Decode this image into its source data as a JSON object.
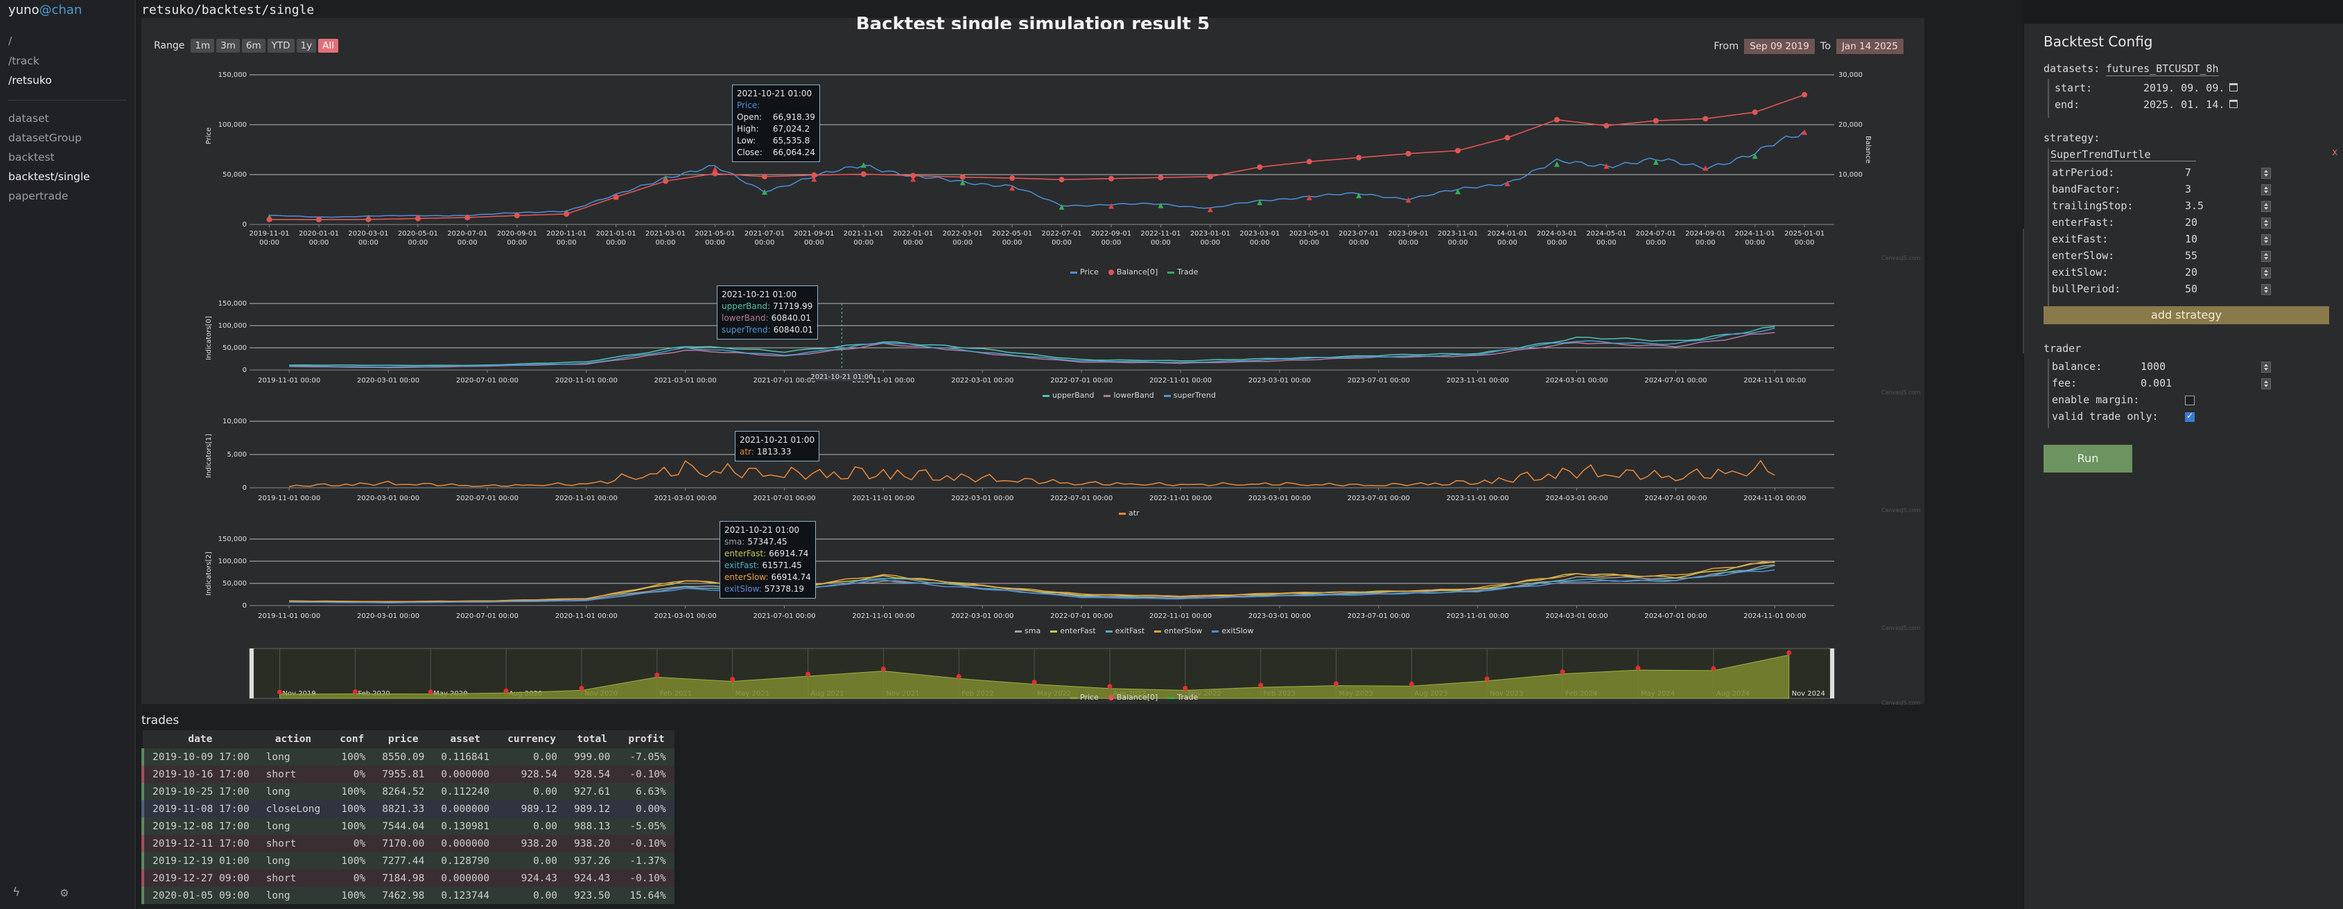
{
  "sidebar": {
    "user_name": "yuno",
    "user_host": "@chan",
    "paths": [
      "/",
      "/track",
      "/retsuko"
    ],
    "items": [
      "dataset",
      "datasetGroup",
      "backtest",
      "backtest/single",
      "papertrade"
    ]
  },
  "breadcrumb": "retsuko/backtest/single",
  "chart_panel": {
    "title": "Backtest single simulation result 5",
    "range_label": "Range",
    "range_buttons": [
      "1m",
      "3m",
      "6m",
      "YTD",
      "1y",
      "All"
    ],
    "range_selected": "All",
    "from_label": "From",
    "from_value": "Sep 09 2019",
    "to_label": "To",
    "to_value": "Jan 14 2025",
    "credit": "CanvasJS.com"
  },
  "chart_data": [
    {
      "type": "line",
      "title": "",
      "ylabel": "Price",
      "y2label": "Balance",
      "ylim": [
        0,
        150000
      ],
      "y2lim": [
        0,
        30000
      ],
      "yticks": [
        "0",
        "50,000",
        "100,000",
        "150,000"
      ],
      "y2ticks": [
        "10,000",
        "20,000",
        "30,000"
      ],
      "x": [
        "2019-11-01 00:00",
        "2020-01-01 00:00",
        "2020-03-01 00:00",
        "2020-05-01 00:00",
        "2020-07-01 00:00",
        "2020-09-01 00:00",
        "2020-11-01 00:00",
        "2021-01-01 00:00",
        "2021-03-01 00:00",
        "2021-05-01 00:00",
        "2021-07-01 00:00",
        "2021-09-01 00:00",
        "2021-11-01 00:00",
        "2022-01-01 00:00",
        "2022-03-01 00:00",
        "2022-05-01 00:00",
        "2022-07-01 00:00",
        "2022-09-01 00:00",
        "2022-11-01 00:00",
        "2023-01-01 00:00",
        "2023-03-01 00:00",
        "2023-05-01 00:00",
        "2023-07-01 00:00",
        "2023-09-01 00:00",
        "2023-11-01 00:00",
        "2024-01-01 00:00",
        "2024-03-01 00:00",
        "2024-05-01 00:00",
        "2024-07-01 00:00",
        "2024-09-01 00:00",
        "2024-11-01 00:00",
        "2025-01-01 00:00"
      ],
      "series": [
        {
          "name": "Price",
          "color": "#4a90d9",
          "values": [
            9100,
            7200,
            8500,
            8800,
            9200,
            11500,
            13800,
            29000,
            48000,
            57000,
            34000,
            47000,
            61000,
            47000,
            43500,
            38000,
            19000,
            20000,
            20500,
            16500,
            23500,
            28500,
            30500,
            26000,
            34500,
            42500,
            62000,
            60000,
            64000,
            58000,
            70000,
            94000
          ]
        },
        {
          "name": "Balance[0]",
          "color": "#e05555",
          "values": [
            1000,
            990,
            1010,
            1200,
            1400,
            1800,
            2100,
            5500,
            8700,
            10200,
            9600,
            9900,
            10100,
            9800,
            9500,
            9300,
            9000,
            9200,
            9400,
            9600,
            11500,
            12600,
            13400,
            14200,
            14800,
            17400,
            21000,
            19800,
            20800,
            21200,
            22500,
            26000
          ]
        }
      ],
      "legend": [
        "Price",
        "Balance[0]",
        "Trade"
      ],
      "tooltip": {
        "time": "2021-10-21 01:00",
        "series": "Price:",
        "open": "66,918.39",
        "high": "67,024.2",
        "low": "65,535.8",
        "close": "66,064.24"
      }
    },
    {
      "type": "line",
      "ylabel": "Indicators[0]",
      "ylim": [
        0,
        150000
      ],
      "yticks": [
        "0",
        "50,000",
        "100,000",
        "150,000"
      ],
      "x": [
        "2019-11-01 00:00",
        "2020-03-01 00:00",
        "2020-07-01 00:00",
        "2020-11-01 00:00",
        "2021-03-01 00:00",
        "2021-07-01 00:00",
        "2021-11-01 00:00",
        "2022-03-01 00:00",
        "2022-07-01 00:00",
        "2022-11-01 00:00",
        "2023-03-01 00:00",
        "2023-07-01 00:00",
        "2023-11-01 00:00",
        "2024-03-01 00:00",
        "2024-07-01 00:00",
        "2024-11-01 00:00"
      ],
      "series": [
        {
          "name": "upperBand",
          "color": "#4fc3b0",
          "values": [
            11000,
            10500,
            11000,
            18000,
            55000,
            40000,
            65000,
            46000,
            24000,
            20000,
            27000,
            32000,
            38000,
            71000,
            66000,
            96000
          ]
        },
        {
          "name": "lowerBand",
          "color": "#b07a9a",
          "values": [
            7500,
            5500,
            8500,
            13500,
            44000,
            31000,
            59000,
            38000,
            18000,
            15000,
            21000,
            28000,
            33000,
            60000,
            55000,
            84000
          ]
        },
        {
          "name": "superTrend",
          "color": "#4a9bd6",
          "values": [
            9000,
            7000,
            9500,
            15000,
            48000,
            34000,
            60800,
            41000,
            20000,
            17000,
            24000,
            30000,
            35500,
            65000,
            60000,
            90000
          ]
        }
      ],
      "legend": [
        "upperBand",
        "lowerBand",
        "superTrend"
      ],
      "crosshair_label": "2021-10-21 01:00",
      "tooltip": {
        "time": "2021-10-21 01:00",
        "rows": [
          {
            "k": "upperBand:",
            "v": "71719.99",
            "c": "#4fc3b0"
          },
          {
            "k": "lowerBand:",
            "v": "60840.01",
            "c": "#b07a9a"
          },
          {
            "k": "superTrend:",
            "v": "60840.01",
            "c": "#4a9bd6"
          }
        ]
      }
    },
    {
      "type": "line",
      "ylabel": "Indicators[1]",
      "ylim": [
        0,
        10000
      ],
      "yticks": [
        "0",
        "5,000",
        "10,000"
      ],
      "x": [
        "2019-11-01 00:00",
        "2020-03-01 00:00",
        "2020-07-01 00:00",
        "2020-11-01 00:00",
        "2021-03-01 00:00",
        "2021-07-01 00:00",
        "2021-11-01 00:00",
        "2022-03-01 00:00",
        "2022-07-01 00:00",
        "2022-11-01 00:00",
        "2023-03-01 00:00",
        "2023-07-01 00:00",
        "2023-11-01 00:00",
        "2024-03-01 00:00",
        "2024-07-01 00:00",
        "2024-11-01 00:00"
      ],
      "series": [
        {
          "name": "atr",
          "color": "#e88a3a",
          "values": [
            300,
            700,
            300,
            600,
            3000,
            2200,
            2400,
            1500,
            700,
            500,
            600,
            400,
            900,
            2600,
            1800,
            3000
          ]
        }
      ],
      "legend": [
        "atr"
      ],
      "tooltip": {
        "time": "2021-10-21 01:00",
        "rows": [
          {
            "k": "atr:",
            "v": "1813.33",
            "c": "#e88a3a"
          }
        ]
      }
    },
    {
      "type": "line",
      "ylabel": "Indicators[2]",
      "ylim": [
        0,
        150000
      ],
      "yticks": [
        "0",
        "50,000",
        "100,000",
        "150,000"
      ],
      "x": [
        "2019-11-01 00:00",
        "2020-03-01 00:00",
        "2020-07-01 00:00",
        "2020-11-01 00:00",
        "2021-03-01 00:00",
        "2021-07-01 00:00",
        "2021-11-01 00:00",
        "2022-03-01 00:00",
        "2022-07-01 00:00",
        "2022-11-01 00:00",
        "2023-03-01 00:00",
        "2023-07-01 00:00",
        "2023-11-01 00:00",
        "2024-03-01 00:00",
        "2024-07-01 00:00",
        "2024-11-01 00:00"
      ],
      "series": [
        {
          "name": "sma",
          "color": "#a0a0a0",
          "values": [
            9000,
            8000,
            9200,
            14000,
            45000,
            36000,
            57000,
            43000,
            22000,
            18000,
            24000,
            29000,
            35000,
            62000,
            61000,
            90000
          ]
        },
        {
          "name": "enterFast",
          "color": "#c8c850",
          "values": [
            10000,
            9000,
            10000,
            16000,
            55000,
            40000,
            66000,
            45000,
            24000,
            21000,
            27000,
            31000,
            38000,
            70000,
            66000,
            98000
          ]
        },
        {
          "name": "exitFast",
          "color": "#4fb0c0",
          "values": [
            8000,
            6500,
            8500,
            12000,
            40000,
            32000,
            61500,
            40000,
            19000,
            16000,
            22000,
            27000,
            32000,
            58000,
            57000,
            86000
          ]
        },
        {
          "name": "enterSlow",
          "color": "#e8a040",
          "values": [
            10200,
            9100,
            10200,
            16200,
            56000,
            41000,
            66900,
            46000,
            25000,
            21500,
            27500,
            31500,
            38500,
            71000,
            67000,
            99000
          ]
        },
        {
          "name": "exitSlow",
          "color": "#5a8ad0",
          "values": [
            7800,
            6000,
            8000,
            11000,
            38000,
            31000,
            57300,
            38000,
            18000,
            15500,
            21000,
            26000,
            31000,
            56000,
            56000,
            84000
          ]
        }
      ],
      "legend": [
        "sma",
        "enterFast",
        "exitFast",
        "enterSlow",
        "exitSlow"
      ],
      "tooltip": {
        "time": "2021-10-21 01:00",
        "rows": [
          {
            "k": "sma:",
            "v": "57347.45",
            "c": "#a0a0a0"
          },
          {
            "k": "enterFast:",
            "v": "66914.74",
            "c": "#c8c850"
          },
          {
            "k": "exitFast:",
            "v": "61571.45",
            "c": "#4fb0c0"
          },
          {
            "k": "enterSlow:",
            "v": "66914.74",
            "c": "#e8a040"
          },
          {
            "k": "exitSlow:",
            "v": "57378.19",
            "c": "#5a8ad0"
          }
        ]
      }
    },
    {
      "type": "area",
      "x": [
        "Nov 2019",
        "Feb 2020",
        "May 2020",
        "Aug 2020",
        "Nov 2020",
        "Feb 2021",
        "May 2021",
        "Aug 2021",
        "Nov 2021",
        "Feb 2022",
        "May 2022",
        "Aug 2022",
        "Nov 2022",
        "Feb 2023",
        "May 2023",
        "Aug 2023",
        "Nov 2023",
        "Feb 2024",
        "May 2024",
        "Aug 2024",
        "Nov 2024"
      ],
      "series": [
        {
          "name": "Price",
          "color": "#8c9a3a",
          "values": [
            9000,
            9500,
            9300,
            11500,
            17000,
            45000,
            36000,
            47000,
            58000,
            42000,
            30000,
            21000,
            17000,
            23500,
            27000,
            26000,
            37000,
            52000,
            60000,
            59000,
            92000
          ]
        }
      ],
      "legend": [
        "Price",
        "Balance[0]",
        "Trade"
      ]
    }
  ],
  "trades": {
    "title": "trades",
    "columns": [
      "date",
      "action",
      "conf",
      "price",
      "asset",
      "currency",
      "total",
      "profit"
    ],
    "rows": [
      {
        "kind": "long",
        "cells": [
          "2019-10-09 17:00",
          "long",
          "100%",
          "8550.09",
          "0.116841",
          "0.00",
          "999.00",
          "-7.05%"
        ]
      },
      {
        "kind": "short",
        "cells": [
          "2019-10-16 17:00",
          "short",
          "0%",
          "7955.81",
          "0.000000",
          "928.54",
          "928.54",
          "-0.10%"
        ]
      },
      {
        "kind": "long",
        "cells": [
          "2019-10-25 17:00",
          "long",
          "100%",
          "8264.52",
          "0.112240",
          "0.00",
          "927.61",
          "6.63%"
        ]
      },
      {
        "kind": "close",
        "cells": [
          "2019-11-08 17:00",
          "closeLong",
          "100%",
          "8821.33",
          "0.000000",
          "989.12",
          "989.12",
          "0.00%"
        ]
      },
      {
        "kind": "long",
        "cells": [
          "2019-12-08 17:00",
          "long",
          "100%",
          "7544.04",
          "0.130981",
          "0.00",
          "988.13",
          "-5.05%"
        ]
      },
      {
        "kind": "short",
        "cells": [
          "2019-12-11 17:00",
          "short",
          "0%",
          "7170.00",
          "0.000000",
          "938.20",
          "938.20",
          "-0.10%"
        ]
      },
      {
        "kind": "long",
        "cells": [
          "2019-12-19 01:00",
          "long",
          "100%",
          "7277.44",
          "0.128790",
          "0.00",
          "937.26",
          "-1.37%"
        ]
      },
      {
        "kind": "short",
        "cells": [
          "2019-12-27 09:00",
          "short",
          "0%",
          "7184.98",
          "0.000000",
          "924.43",
          "924.43",
          "-0.10%"
        ]
      },
      {
        "kind": "long",
        "cells": [
          "2020-01-05 09:00",
          "long",
          "100%",
          "7462.98",
          "0.123744",
          "0.00",
          "923.50",
          "15.64%"
        ]
      }
    ]
  },
  "config": {
    "title": "Backtest Config",
    "datasets_label": "datasets:",
    "datasets_value": "futures_BTCUSDT_8h",
    "start_label": "start:",
    "start_value": "2019. 09. 09.",
    "end_label": "end:",
    "end_value": "2025. 01. 14.",
    "strategy_label": "strategy:",
    "strategy_name": "SuperTrendTurtle",
    "strategy_remove": "x",
    "params": [
      {
        "k": "atrPeriod:",
        "v": "7"
      },
      {
        "k": "bandFactor:",
        "v": "3"
      },
      {
        "k": "trailingStop:",
        "v": "3.5"
      },
      {
        "k": "enterFast:",
        "v": "20"
      },
      {
        "k": "exitFast:",
        "v": "10"
      },
      {
        "k": "enterSlow:",
        "v": "55"
      },
      {
        "k": "exitSlow:",
        "v": "20"
      },
      {
        "k": "bullPeriod:",
        "v": "50"
      }
    ],
    "add_strategy": "add strategy",
    "trader_label": "trader",
    "balance_label": "balance:",
    "balance_value": "1000",
    "fee_label": "fee:",
    "fee_value": "0.001",
    "margin_label": "enable margin:",
    "margin_checked": false,
    "valid_label": "valid trade only:",
    "valid_checked": true,
    "run": "Run"
  }
}
